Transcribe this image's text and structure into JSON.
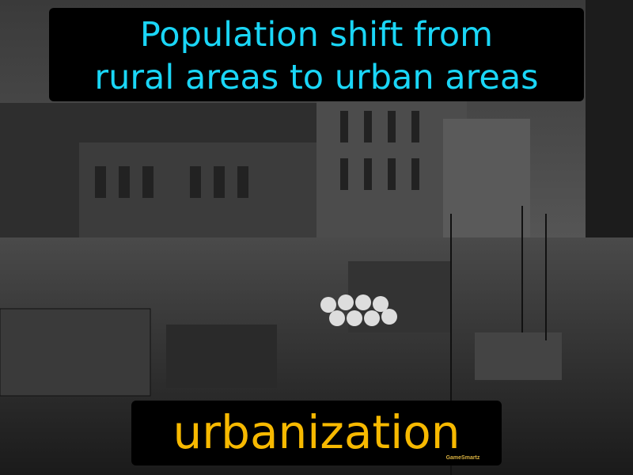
{
  "definition": {
    "lines": [
      "Population shift from",
      "rural areas to urban areas"
    ]
  },
  "term": "urbanization",
  "watermark": "GameSmartz"
}
